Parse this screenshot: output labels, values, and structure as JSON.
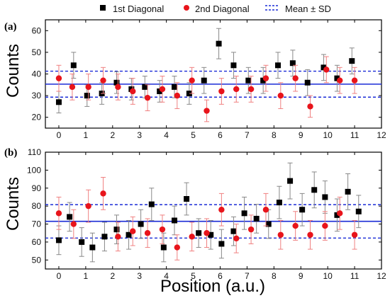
{
  "figure": {
    "xlabel": "Position (a.u.)",
    "legend": {
      "placement": "top",
      "entries": [
        {
          "label": "1st Diagonal",
          "marker": "square",
          "color": "#000000"
        },
        {
          "label": "2nd Diagonal",
          "marker": "circle",
          "color": "#e8141b"
        },
        {
          "label": "Mean  ± SD",
          "marker": "dashed-lines",
          "color": "#1a2bd6"
        }
      ]
    },
    "colors": {
      "first": "#000000",
      "second": "#e8141b",
      "firstErr": "#888888",
      "secondErr": "#f08080",
      "mean": "#1a2bd6"
    }
  },
  "chart_data": [
    {
      "type": "scatter",
      "panel_label": "(a)",
      "ylabel": "Counts",
      "xlim": [
        -0.5,
        12
      ],
      "ylim": [
        15,
        65
      ],
      "xticks": [
        0,
        1,
        2,
        3,
        4,
        5,
        6,
        7,
        8,
        9,
        10,
        11,
        12
      ],
      "yticks": [
        20,
        30,
        40,
        50,
        60
      ],
      "mean": 35.3,
      "mean_plus_sd": 41.3,
      "mean_minus_sd": 29.3,
      "series": [
        {
          "name": "1st Diagonal",
          "x": [
            0,
            0.55,
            1.05,
            1.6,
            2.15,
            2.7,
            3.2,
            3.75,
            4.3,
            4.85,
            5.4,
            5.95,
            6.5,
            7.05,
            7.6,
            8.15,
            8.7,
            9.25,
            9.85,
            10.35,
            10.9
          ],
          "y": [
            27,
            44,
            30,
            31,
            36,
            33,
            34,
            32,
            34,
            31,
            37,
            54,
            44,
            37,
            37,
            44,
            45,
            36,
            43,
            38,
            46
          ],
          "err": [
            5,
            6,
            5,
            5,
            5,
            5,
            5,
            5,
            5,
            5,
            6,
            7,
            6,
            6,
            6,
            6,
            6,
            6,
            6,
            6,
            6
          ]
        },
        {
          "name": "2nd Diagonal",
          "x": [
            0,
            0.5,
            1.1,
            1.65,
            2.2,
            2.75,
            3.3,
            3.85,
            4.4,
            4.95,
            5.5,
            6.05,
            6.6,
            7.15,
            7.7,
            8.25,
            8.8,
            9.35,
            9.95,
            10.45,
            11
          ],
          "y": [
            38,
            34,
            34,
            37,
            34,
            32,
            29,
            33,
            30,
            37,
            23,
            32,
            33,
            33,
            38,
            30,
            38,
            25,
            42,
            37,
            37
          ],
          "err": [
            6,
            6,
            6,
            6,
            6,
            6,
            6,
            6,
            6,
            6,
            5,
            6,
            6,
            6,
            6,
            6,
            6,
            5,
            6,
            6,
            6
          ]
        }
      ]
    },
    {
      "type": "scatter",
      "panel_label": "(b)",
      "ylabel": "Counts",
      "xlim": [
        -0.5,
        12
      ],
      "ylim": [
        45,
        110
      ],
      "xticks": [
        0,
        1,
        2,
        3,
        4,
        5,
        6,
        7,
        8,
        9,
        10,
        11,
        12
      ],
      "yticks": [
        50,
        60,
        70,
        80,
        90,
        100,
        110
      ],
      "mean": 71.5,
      "mean_plus_sd": 80.8,
      "mean_minus_sd": 62.2,
      "series": [
        {
          "name": "1st Diagonal",
          "x": [
            0,
            0.4,
            0.85,
            1.25,
            1.7,
            2.15,
            2.6,
            3.05,
            3.45,
            3.9,
            4.3,
            4.75,
            5.2,
            5.65,
            6.05,
            6.5,
            6.9,
            7.35,
            7.8,
            8.2,
            8.6,
            9.05,
            9.5,
            9.9,
            10.35,
            10.75,
            11.15
          ],
          "y": [
            61,
            74,
            60,
            57,
            63,
            67,
            64,
            70,
            81,
            57,
            72,
            84,
            65,
            64,
            59,
            66,
            76,
            73,
            70,
            82,
            94,
            78,
            89,
            85,
            75,
            88,
            77
          ],
          "err": [
            8,
            8,
            8,
            8,
            8,
            8,
            8,
            8,
            9,
            8,
            8,
            9,
            8,
            8,
            8,
            8,
            9,
            8,
            8,
            9,
            10,
            9,
            10,
            9,
            9,
            10,
            9
          ]
        },
        {
          "name": "2nd Diagonal",
          "x": [
            0,
            0.55,
            1.1,
            1.65,
            2.2,
            2.75,
            3.3,
            3.85,
            4.4,
            4.95,
            5.5,
            6.05,
            6.6,
            7.15,
            7.7,
            8.25,
            8.8,
            9.35,
            9.9,
            10.45,
            11
          ],
          "y": [
            76,
            70,
            80,
            87,
            63,
            66,
            65,
            67,
            57,
            63,
            65,
            78,
            62,
            67,
            78,
            64,
            69,
            64,
            69,
            76,
            64
          ],
          "err": [
            9,
            8,
            9,
            9,
            8,
            8,
            8,
            8,
            7,
            8,
            8,
            9,
            8,
            8,
            9,
            8,
            8,
            8,
            8,
            9,
            8
          ]
        }
      ]
    }
  ]
}
